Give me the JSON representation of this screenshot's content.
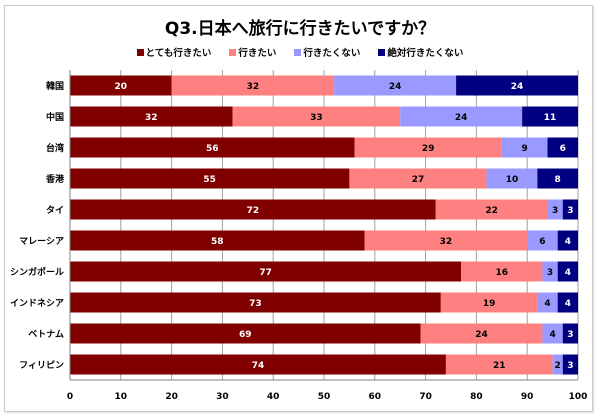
{
  "chart_data": {
    "type": "bar",
    "orientation": "horizontal",
    "stacked": true,
    "title": "Q3.日本へ旅行に行きたいですか？",
    "categories": [
      "韓国",
      "中国",
      "台湾",
      "香港",
      "タイ",
      "マレーシア",
      "シンガポール",
      "インドネシア",
      "ベトナム",
      "フィリピン"
    ],
    "series": [
      {
        "name": "とても行きたい",
        "color": "#800000",
        "values": [
          20,
          32,
          56,
          55,
          72,
          58,
          77,
          73,
          69,
          74
        ]
      },
      {
        "name": "行きたい",
        "color": "#ff8080",
        "values": [
          32,
          33,
          29,
          27,
          22,
          32,
          16,
          19,
          24,
          21
        ]
      },
      {
        "name": "行きたくない",
        "color": "#9999ff",
        "values": [
          24,
          24,
          9,
          10,
          3,
          6,
          3,
          4,
          4,
          2
        ]
      },
      {
        "name": "絶対行きたくない",
        "color": "#000080",
        "values": [
          24,
          11,
          6,
          8,
          3,
          4,
          4,
          4,
          3,
          3
        ]
      }
    ],
    "xlim": [
      0,
      100
    ],
    "xticks": [
      "0",
      "10",
      "20",
      "30",
      "40",
      "50",
      "60",
      "70",
      "80",
      "90",
      "100"
    ],
    "grid": true,
    "legend_position": "top",
    "data_labels": true
  }
}
